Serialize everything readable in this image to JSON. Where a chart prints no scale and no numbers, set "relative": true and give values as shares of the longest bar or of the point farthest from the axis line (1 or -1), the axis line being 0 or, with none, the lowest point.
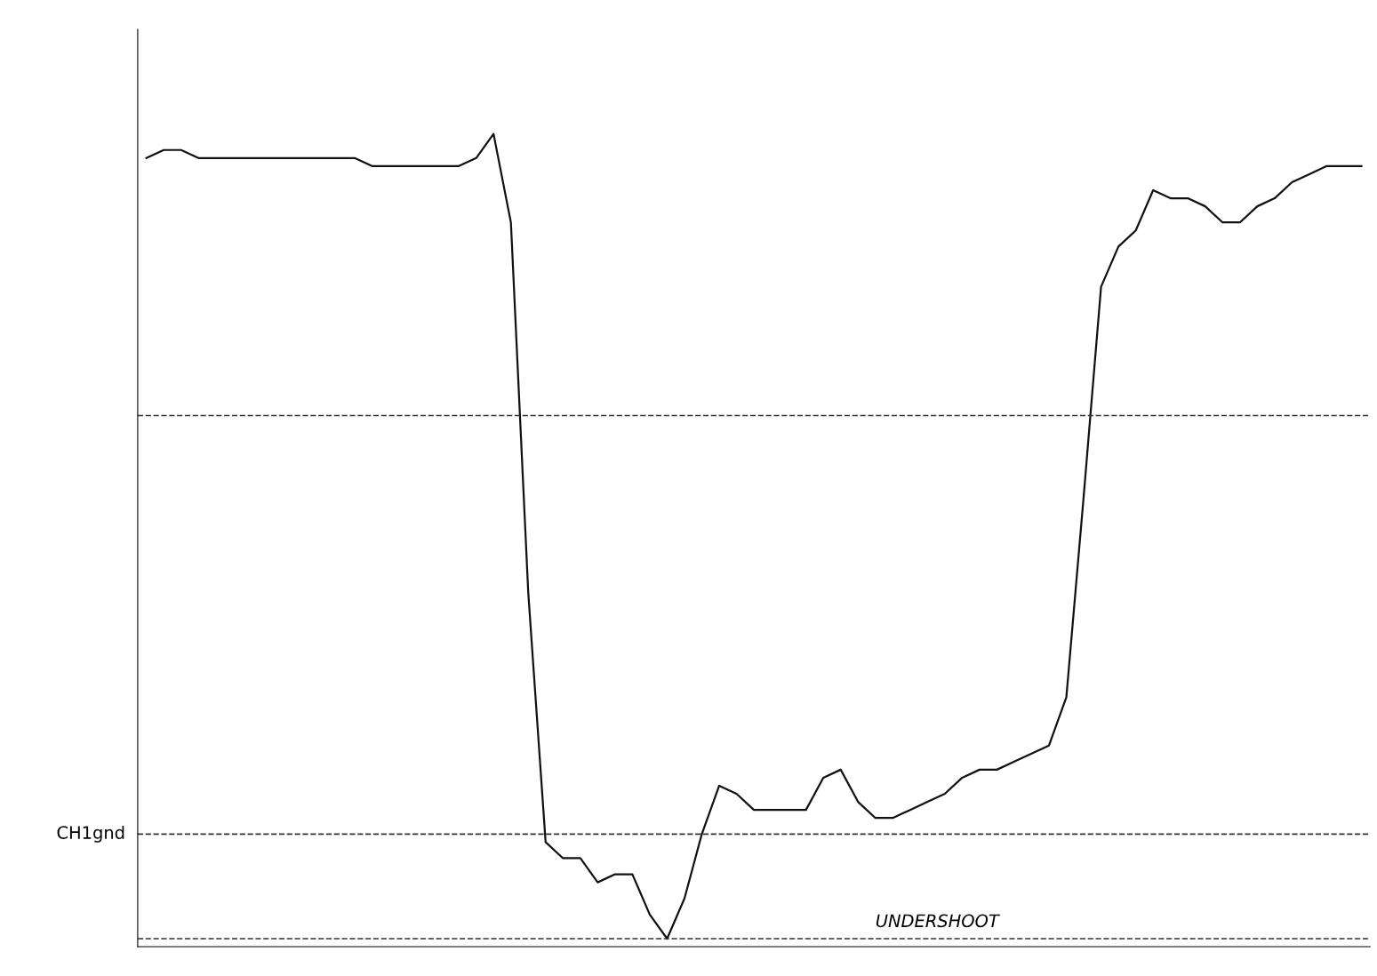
{
  "chart_data": {
    "type": "line",
    "relative": true,
    "categories": [
      null,
      null,
      null,
      null,
      null,
      null,
      null,
      null,
      null,
      null,
      null,
      null,
      null,
      null,
      null,
      null,
      null,
      null,
      null,
      null,
      null,
      null,
      null,
      null,
      null,
      null,
      null,
      null,
      null,
      null,
      null,
      null,
      null,
      null,
      null,
      null,
      null,
      null,
      null,
      null,
      null,
      null,
      null,
      null,
      null,
      null,
      null,
      null,
      null,
      null,
      null,
      null,
      null,
      null,
      null,
      null,
      null,
      null,
      null,
      null,
      null,
      null,
      null,
      null,
      null,
      null,
      null,
      null,
      null,
      null,
      null
    ],
    "series": [
      {
        "color": "#111111",
        "values": [
          0.97,
          0.98,
          0.98,
          0.97,
          0.97,
          0.97,
          0.97,
          0.97,
          0.97,
          0.97,
          0.97,
          0.97,
          0.97,
          0.96,
          0.96,
          0.96,
          0.96,
          0.96,
          0.96,
          0.97,
          1.0,
          0.89,
          0.43,
          0.12,
          0.1,
          0.1,
          0.07,
          0.08,
          0.08,
          0.03,
          0,
          0.05,
          0.13,
          0.19,
          0.18,
          0.16,
          0.16,
          0.16,
          0.16,
          0.2,
          0.21,
          0.17,
          0.15,
          0.15,
          0.16,
          0.17,
          0.18,
          0.2,
          0.21,
          0.21,
          0.22,
          0.23,
          0.24,
          0.3,
          0.55,
          0.81,
          0.86,
          0.88,
          0.93,
          0.92,
          0.92,
          0.91,
          0.89,
          0.89,
          0.91,
          0.92,
          0.94,
          0.95,
          0.96,
          0.96,
          0.96
        ]
      }
    ],
    "ref_lines": [
      {
        "axis": "y",
        "value": 0.65,
        "label": null,
        "line_style": "dashed",
        "color": "#333333"
      },
      {
        "axis": "y",
        "value": 0.13,
        "label": "CH1gnd",
        "line_style": "dashed",
        "color": "#333333"
      },
      {
        "axis": "y",
        "value": 0,
        "label": "UNDERSHOOT",
        "line_style": "dashed",
        "color": "#333333"
      }
    ],
    "grid": false,
    "legend": false,
    "marker": "none",
    "line_style": "solid"
  }
}
